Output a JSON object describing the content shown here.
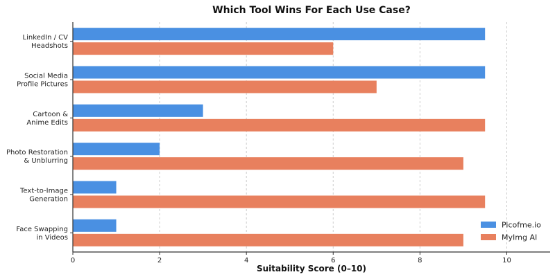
{
  "chart_data": {
    "type": "bar",
    "orientation": "horizontal",
    "title": "Which Tool Wins For Each Use Case?",
    "xlabel": "Suitability Score (0–10)",
    "ylabel": "",
    "xlim": [
      0,
      11
    ],
    "xticks": [
      0,
      2,
      4,
      6,
      8,
      10
    ],
    "grid": "vertical dashed",
    "legend_position": "bottom-right",
    "categories": [
      [
        "LinkedIn / CV",
        "Headshots"
      ],
      [
        "Social Media",
        "Profile Pictures"
      ],
      [
        "Cartoon &",
        "Anime Edits"
      ],
      [
        "Photo Restoration",
        "& Unblurring"
      ],
      [
        "Text-to-Image",
        "Generation"
      ],
      [
        "Face Swapping",
        "in Videos"
      ]
    ],
    "series": [
      {
        "name": "Picofme.io",
        "color": "#4a90e2",
        "values": [
          9.5,
          9.5,
          3,
          2,
          1,
          1
        ]
      },
      {
        "name": "MyImg AI",
        "color": "#e8805e",
        "values": [
          6,
          7,
          9.5,
          9,
          9.5,
          9
        ]
      }
    ]
  }
}
